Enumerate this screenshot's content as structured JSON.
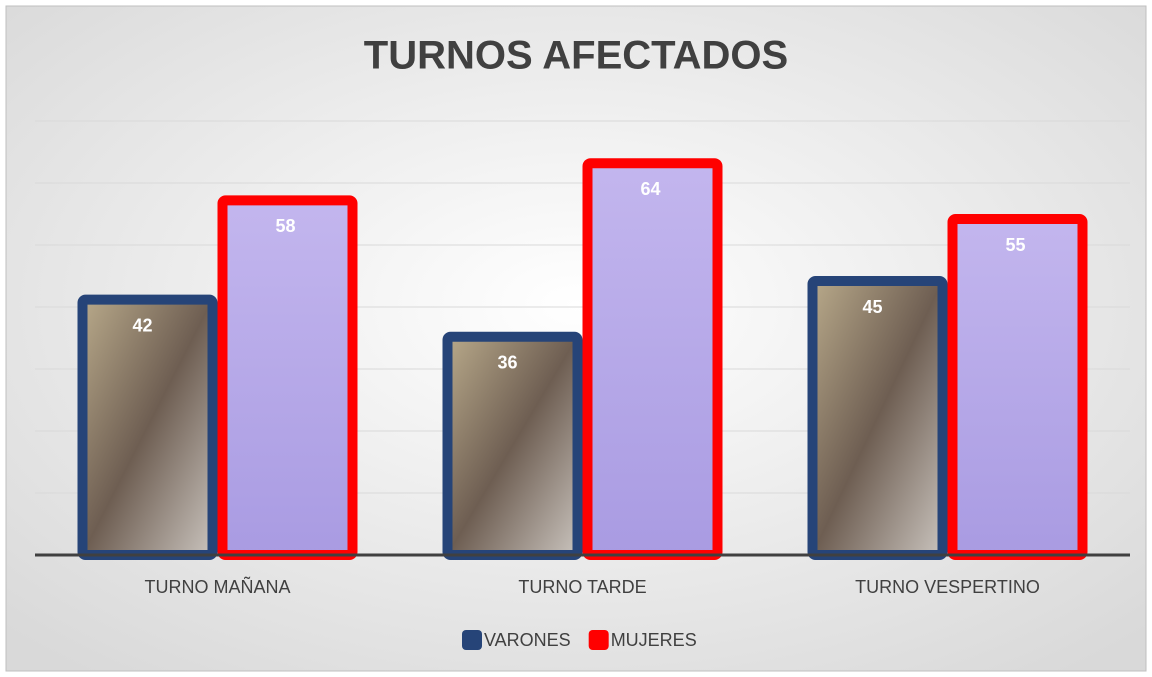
{
  "chart_data": {
    "type": "bar",
    "title": "TURNOS AFECTADOS",
    "categories": [
      "TURNO MAÑANA",
      "TURNO TARDE",
      "TURNO VESPERTINO"
    ],
    "series": [
      {
        "name": "VARONES",
        "color": "#264478",
        "values": [
          42,
          36,
          45
        ]
      },
      {
        "name": "MUJERES",
        "color": "#ff0000",
        "values": [
          58,
          64,
          55
        ]
      }
    ],
    "ylim": [
      0,
      70
    ],
    "yticks": [
      0,
      10,
      20,
      30,
      40,
      50,
      60,
      70
    ],
    "grid": true,
    "legend": "bottom"
  }
}
